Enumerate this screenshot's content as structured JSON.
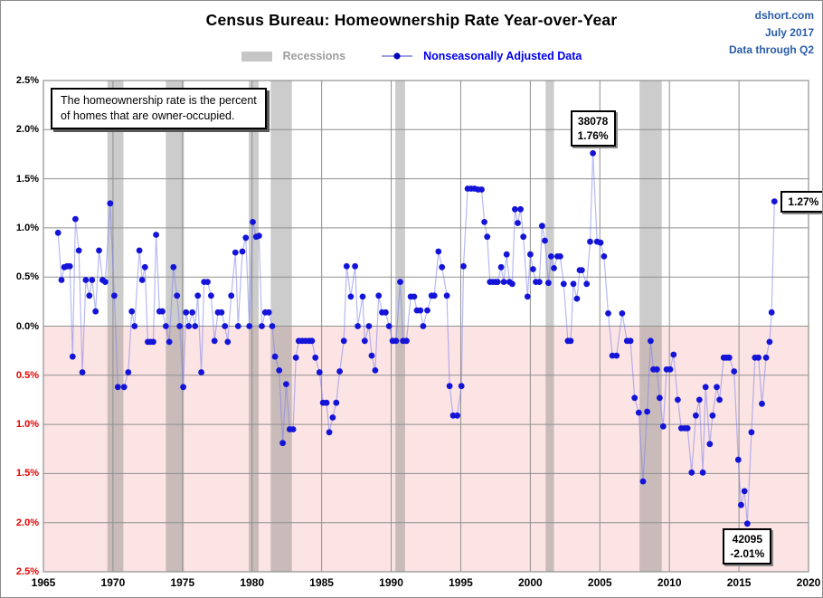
{
  "header": {
    "title": "Census Bureau: Homeownership Rate Year-over-Year",
    "source_lines": [
      "dshort.com",
      "July 2017",
      "Data through Q2"
    ]
  },
  "legend": {
    "recessions_label": "Recessions",
    "series_label": "Nonseasonally Adjusted Data"
  },
  "note": {
    "line1": "The homeownership rate is the percent",
    "line2": "of homes that are owner-occupied."
  },
  "chart_data": {
    "type": "line",
    "title": "Census Bureau: Homeownership Rate Year-over-Year",
    "xlabel": "",
    "ylabel": "",
    "x_axis": {
      "min": 1965,
      "max": 2020,
      "ticks": [
        1965,
        1970,
        1975,
        1980,
        1985,
        1990,
        1995,
        2000,
        2005,
        2010,
        2015,
        2020
      ]
    },
    "y_axis": {
      "min": -2.5,
      "max": 2.5,
      "tick_step": 0.5,
      "ticks": [
        {
          "value": 2.5,
          "label": "2.5%"
        },
        {
          "value": 2.0,
          "label": "2.0%"
        },
        {
          "value": 1.5,
          "label": "1.5%"
        },
        {
          "value": 1.0,
          "label": "1.0%"
        },
        {
          "value": 0.5,
          "label": "0.5%"
        },
        {
          "value": 0.0,
          "label": "0.0%"
        },
        {
          "value": -0.5,
          "label": "0.5%"
        },
        {
          "value": -1.0,
          "label": "1.0%"
        },
        {
          "value": -1.5,
          "label": "1.5%"
        },
        {
          "value": -2.0,
          "label": "2.0%"
        },
        {
          "value": -2.5,
          "label": "2.5%"
        }
      ]
    },
    "grid": true,
    "legend_position": "top-center",
    "recession_bands": [
      [
        1969.6,
        1970.75
      ],
      [
        1973.8,
        1975.1
      ],
      [
        1979.76,
        1980.47
      ],
      [
        1981.34,
        1982.86
      ],
      [
        1990.3,
        1991.0
      ],
      [
        2001.1,
        2001.7
      ],
      [
        2007.85,
        2009.45
      ]
    ],
    "series": [
      {
        "name": "Nonseasonally Adjusted Data",
        "points": [
          [
            1966.05,
            0.95
          ],
          [
            1966.3,
            0.47
          ],
          [
            1966.5,
            0.6
          ],
          [
            1966.7,
            0.61
          ],
          [
            1966.9,
            0.61
          ],
          [
            1967.1,
            -0.31
          ],
          [
            1967.3,
            1.09
          ],
          [
            1967.55,
            0.77
          ],
          [
            1967.8,
            -0.47
          ],
          [
            1968.05,
            0.47
          ],
          [
            1968.3,
            0.31
          ],
          [
            1968.5,
            0.47
          ],
          [
            1968.75,
            0.15
          ],
          [
            1969.0,
            0.77
          ],
          [
            1969.25,
            0.47
          ],
          [
            1969.45,
            0.45
          ],
          [
            1969.8,
            1.25
          ],
          [
            1970.1,
            0.31
          ],
          [
            1970.35,
            -0.62
          ],
          [
            1970.8,
            -0.62
          ],
          [
            1971.1,
            -0.47
          ],
          [
            1971.35,
            0.15
          ],
          [
            1971.55,
            0.0
          ],
          [
            1971.9,
            0.77
          ],
          [
            1972.1,
            0.47
          ],
          [
            1972.3,
            0.6
          ],
          [
            1972.5,
            -0.16
          ],
          [
            1972.7,
            -0.16
          ],
          [
            1972.9,
            -0.16
          ],
          [
            1973.1,
            0.93
          ],
          [
            1973.35,
            0.15
          ],
          [
            1973.55,
            0.15
          ],
          [
            1973.8,
            0.0
          ],
          [
            1974.05,
            -0.16
          ],
          [
            1974.35,
            0.6
          ],
          [
            1974.6,
            0.31
          ],
          [
            1974.8,
            0.0
          ],
          [
            1975.05,
            -0.62
          ],
          [
            1975.25,
            0.14
          ],
          [
            1975.45,
            0.0
          ],
          [
            1975.7,
            0.14
          ],
          [
            1975.9,
            0.0
          ],
          [
            1976.1,
            0.31
          ],
          [
            1976.35,
            -0.47
          ],
          [
            1976.55,
            0.45
          ],
          [
            1976.8,
            0.45
          ],
          [
            1977.05,
            0.31
          ],
          [
            1977.3,
            -0.15
          ],
          [
            1977.55,
            0.14
          ],
          [
            1977.8,
            0.14
          ],
          [
            1978.05,
            0.0
          ],
          [
            1978.25,
            -0.16
          ],
          [
            1978.5,
            0.31
          ],
          [
            1978.8,
            0.75
          ],
          [
            1979.0,
            0.0
          ],
          [
            1979.3,
            0.76
          ],
          [
            1979.55,
            0.9
          ],
          [
            1979.8,
            0.0
          ],
          [
            1980.05,
            1.06
          ],
          [
            1980.3,
            0.91
          ],
          [
            1980.5,
            0.92
          ],
          [
            1980.7,
            0.0
          ],
          [
            1980.95,
            0.14
          ],
          [
            1981.2,
            0.14
          ],
          [
            1981.45,
            0.0
          ],
          [
            1981.65,
            -0.31
          ],
          [
            1981.95,
            -0.45
          ],
          [
            1982.2,
            -1.19
          ],
          [
            1982.45,
            -0.59
          ],
          [
            1982.7,
            -1.05
          ],
          [
            1982.95,
            -1.05
          ],
          [
            1983.15,
            -0.32
          ],
          [
            1983.35,
            -0.15
          ],
          [
            1983.6,
            -0.15
          ],
          [
            1983.85,
            -0.15
          ],
          [
            1984.1,
            -0.15
          ],
          [
            1984.3,
            -0.15
          ],
          [
            1984.55,
            -0.32
          ],
          [
            1984.85,
            -0.47
          ],
          [
            1985.1,
            -0.78
          ],
          [
            1985.35,
            -0.78
          ],
          [
            1985.55,
            -1.08
          ],
          [
            1985.8,
            -0.93
          ],
          [
            1986.05,
            -0.78
          ],
          [
            1986.3,
            -0.46
          ],
          [
            1986.6,
            -0.15
          ],
          [
            1986.8,
            0.61
          ],
          [
            1987.1,
            0.3
          ],
          [
            1987.4,
            0.61
          ],
          [
            1987.6,
            0.0
          ],
          [
            1987.95,
            0.3
          ],
          [
            1988.1,
            -0.15
          ],
          [
            1988.4,
            0.0
          ],
          [
            1988.6,
            -0.3
          ],
          [
            1988.85,
            -0.45
          ],
          [
            1989.1,
            0.31
          ],
          [
            1989.35,
            0.14
          ],
          [
            1989.6,
            0.14
          ],
          [
            1989.85,
            0.0
          ],
          [
            1990.1,
            -0.15
          ],
          [
            1990.35,
            -0.15
          ],
          [
            1990.65,
            0.45
          ],
          [
            1990.85,
            -0.15
          ],
          [
            1991.1,
            -0.15
          ],
          [
            1991.4,
            0.3
          ],
          [
            1991.65,
            0.3
          ],
          [
            1991.85,
            0.16
          ],
          [
            1992.1,
            0.16
          ],
          [
            1992.3,
            0.0
          ],
          [
            1992.6,
            0.16
          ],
          [
            1992.9,
            0.31
          ],
          [
            1993.1,
            0.31
          ],
          [
            1993.4,
            0.76
          ],
          [
            1993.65,
            0.6
          ],
          [
            1994.0,
            0.31
          ],
          [
            1994.2,
            -0.61
          ],
          [
            1994.45,
            -0.91
          ],
          [
            1994.75,
            -0.91
          ],
          [
            1995.05,
            -0.61
          ],
          [
            1995.2,
            0.61
          ],
          [
            1995.5,
            1.4
          ],
          [
            1995.75,
            1.4
          ],
          [
            1996.0,
            1.4
          ],
          [
            1996.25,
            1.39
          ],
          [
            1996.5,
            1.39
          ],
          [
            1996.7,
            1.06
          ],
          [
            1996.9,
            0.91
          ],
          [
            1997.1,
            0.45
          ],
          [
            1997.3,
            0.45
          ],
          [
            1997.5,
            0.45
          ],
          [
            1997.65,
            0.45
          ],
          [
            1997.9,
            0.6
          ],
          [
            1998.1,
            0.45
          ],
          [
            1998.3,
            0.73
          ],
          [
            1998.5,
            0.45
          ],
          [
            1998.7,
            0.43
          ],
          [
            1998.9,
            1.19
          ],
          [
            1999.1,
            1.05
          ],
          [
            1999.3,
            1.19
          ],
          [
            1999.5,
            0.91
          ],
          [
            1999.8,
            0.3
          ],
          [
            2000.0,
            0.73
          ],
          [
            2000.2,
            0.58
          ],
          [
            2000.4,
            0.45
          ],
          [
            2000.65,
            0.45
          ],
          [
            2000.85,
            1.02
          ],
          [
            2001.05,
            0.87
          ],
          [
            2001.3,
            0.44
          ],
          [
            2001.5,
            0.71
          ],
          [
            2001.7,
            0.59
          ],
          [
            2001.95,
            0.71
          ],
          [
            2002.15,
            0.71
          ],
          [
            2002.4,
            0.43
          ],
          [
            2002.7,
            -0.15
          ],
          [
            2002.9,
            -0.15
          ],
          [
            2003.1,
            0.43
          ],
          [
            2003.35,
            0.28
          ],
          [
            2003.55,
            0.57
          ],
          [
            2003.7,
            0.57
          ],
          [
            2004.05,
            0.43
          ],
          [
            2004.3,
            0.86
          ],
          [
            2004.5,
            1.76
          ],
          [
            2004.8,
            0.86
          ],
          [
            2005.05,
            0.85
          ],
          [
            2005.3,
            0.71
          ],
          [
            2005.6,
            0.13
          ],
          [
            2005.9,
            -0.3
          ],
          [
            2006.2,
            -0.3
          ],
          [
            2006.6,
            0.13
          ],
          [
            2006.95,
            -0.15
          ],
          [
            2007.2,
            -0.15
          ],
          [
            2007.5,
            -0.73
          ],
          [
            2007.8,
            -0.88
          ],
          [
            2008.1,
            -1.58
          ],
          [
            2008.4,
            -0.87
          ],
          [
            2008.65,
            -0.15
          ],
          [
            2008.85,
            -0.44
          ],
          [
            2009.1,
            -0.44
          ],
          [
            2009.3,
            -0.73
          ],
          [
            2009.55,
            -1.02
          ],
          [
            2009.8,
            -0.44
          ],
          [
            2010.05,
            -0.44
          ],
          [
            2010.3,
            -0.29
          ],
          [
            2010.6,
            -0.75
          ],
          [
            2010.85,
            -1.04
          ],
          [
            2011.1,
            -1.04
          ],
          [
            2011.3,
            -1.04
          ],
          [
            2011.6,
            -1.49
          ],
          [
            2011.9,
            -0.91
          ],
          [
            2012.15,
            -0.75
          ],
          [
            2012.4,
            -1.49
          ],
          [
            2012.6,
            -0.62
          ],
          [
            2012.9,
            -1.2
          ],
          [
            2013.1,
            -0.91
          ],
          [
            2013.4,
            -0.62
          ],
          [
            2013.6,
            -0.75
          ],
          [
            2013.9,
            -0.32
          ],
          [
            2014.1,
            -0.32
          ],
          [
            2014.3,
            -0.32
          ],
          [
            2014.65,
            -0.46
          ],
          [
            2014.95,
            -1.36
          ],
          [
            2015.15,
            -1.82
          ],
          [
            2015.4,
            -1.68
          ],
          [
            2015.6,
            -2.01
          ],
          [
            2015.9,
            -1.08
          ],
          [
            2016.15,
            -0.32
          ],
          [
            2016.4,
            -0.32
          ],
          [
            2016.65,
            -0.79
          ],
          [
            2016.95,
            -0.32
          ],
          [
            2017.2,
            -0.16
          ],
          [
            2017.35,
            0.14
          ],
          [
            2017.55,
            1.27
          ]
        ]
      }
    ],
    "annotations": [
      {
        "lines": [
          "38078",
          "1.76%"
        ],
        "year": 2004.5,
        "value": 1.76,
        "position": "above"
      },
      {
        "lines": [
          "42095",
          "-2.01%"
        ],
        "year": 2015.6,
        "value": -2.01,
        "position": "below"
      },
      {
        "lines": [
          "1.27%"
        ],
        "year": 2017.55,
        "value": 1.27,
        "position": "right"
      }
    ],
    "colors": {
      "point": "#1414d9",
      "line": "rgba(122,128,235,0.55)",
      "negative_fill": "#fce4e4",
      "recession_band": "rgba(122,122,122,0.38)",
      "gridline": "#8f8f8f",
      "tick_label_positive": "#000000",
      "tick_label_negative": "#e60000",
      "source_text": "#2a5ca8",
      "legend_series_text": "#0000ee",
      "legend_recession_text": "#9c9c9c"
    }
  }
}
